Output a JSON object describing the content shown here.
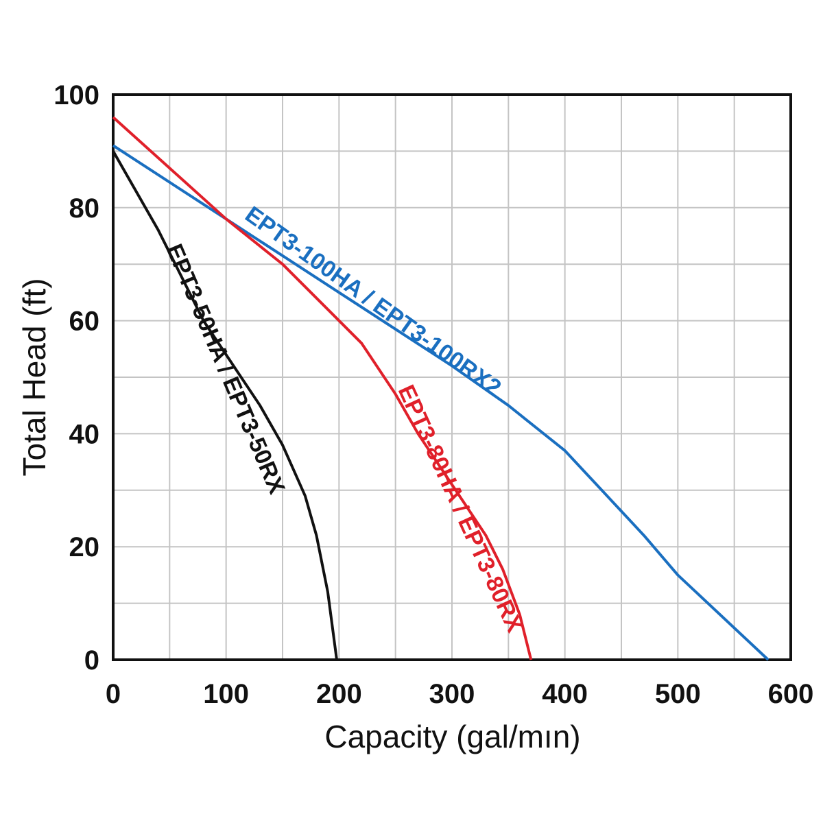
{
  "chart_data": {
    "type": "line",
    "xlabel": "Capacity (gal/mın)",
    "ylabel": "Total Head (ft)",
    "xlim": [
      0,
      600
    ],
    "ylim": [
      0,
      100
    ],
    "xticks": [
      "0",
      "100",
      "200",
      "300",
      "400",
      "500",
      "600"
    ],
    "yticks": [
      "0",
      "20",
      "40",
      "60",
      "80",
      "100"
    ],
    "grid": true,
    "minor_grid_step": {
      "x": 50,
      "y": 10
    },
    "series": [
      {
        "name": "EPT3-100HA / EPT3-100RX2",
        "color": "#1a6fc0",
        "points": [
          [
            0,
            91
          ],
          [
            100,
            78
          ],
          [
            200,
            65
          ],
          [
            300,
            52
          ],
          [
            350,
            45
          ],
          [
            400,
            37
          ],
          [
            470,
            22
          ],
          [
            500,
            15
          ],
          [
            580,
            0
          ]
        ]
      },
      {
        "name": "EPT3-80HA / EPT3-80RX",
        "color": "#e0202a",
        "points": [
          [
            0,
            96
          ],
          [
            100,
            78
          ],
          [
            150,
            70
          ],
          [
            190,
            62
          ],
          [
            220,
            56
          ],
          [
            250,
            47
          ],
          [
            270,
            40
          ],
          [
            300,
            31
          ],
          [
            330,
            22
          ],
          [
            345,
            16
          ],
          [
            360,
            8
          ],
          [
            370,
            0
          ]
        ]
      },
      {
        "name": "EPT3-50HA / EPT3-50RX",
        "color": "#111111",
        "points": [
          [
            0,
            90
          ],
          [
            40,
            76
          ],
          [
            80,
            60
          ],
          [
            110,
            51
          ],
          [
            130,
            45
          ],
          [
            150,
            38
          ],
          [
            170,
            29
          ],
          [
            180,
            22
          ],
          [
            190,
            12
          ],
          [
            198,
            0
          ]
        ]
      }
    ]
  }
}
